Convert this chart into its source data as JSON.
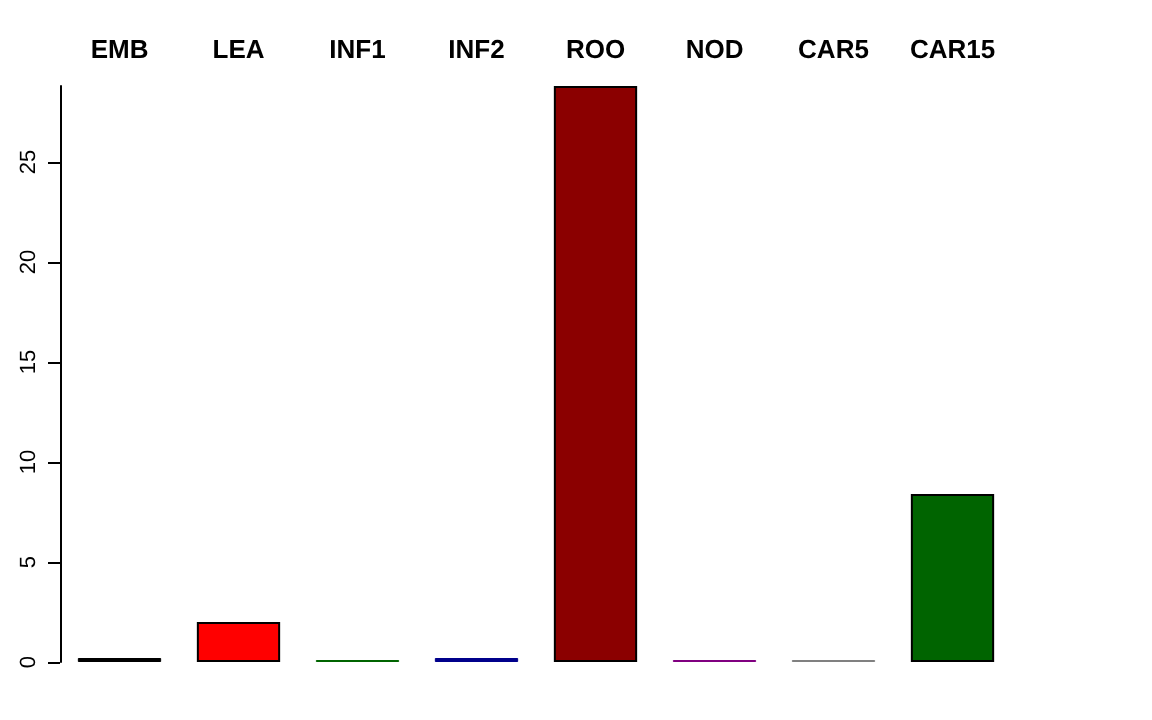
{
  "chart_data": {
    "type": "bar",
    "categories": [
      "EMB",
      "LEA",
      "INF1",
      "INF2",
      "ROO",
      "NOD",
      "CAR5",
      "CAR15"
    ],
    "values": [
      0.2,
      2.0,
      0.1,
      0.2,
      28.8,
      0.1,
      0.1,
      8.4
    ],
    "colors": [
      "#000000",
      "#ff0000",
      "#006400",
      "#00008b",
      "#8b0000",
      "#800080",
      "#808080",
      "#006400"
    ],
    "ylim": [
      0,
      28.8
    ],
    "yticks": [
      0,
      5,
      10,
      15,
      20,
      25
    ],
    "grid": false
  }
}
